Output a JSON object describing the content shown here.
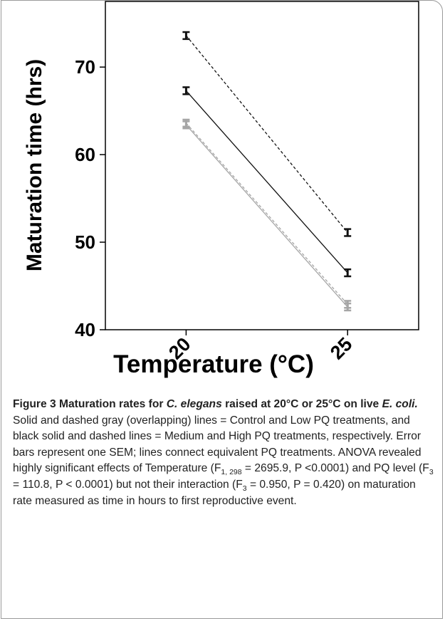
{
  "chart_data": {
    "type": "line",
    "x_label": "Temperature (°C)",
    "y_label": "Maturation time (hrs)",
    "x": [
      20,
      25
    ],
    "xlim": [
      17.5,
      27.2
    ],
    "xticks": [
      20,
      25
    ],
    "ylim": [
      40,
      77.5
    ],
    "yticks": [
      40,
      50,
      60,
      70
    ],
    "series": [
      {
        "color": "#a6a6a6",
        "dashed": false,
        "values": [
          63.4,
          42.6
        ],
        "errors": [
          0.4,
          0.4
        ]
      },
      {
        "color": "#a6a6a6",
        "dashed": true,
        "values": [
          63.6,
          42.9
        ],
        "errors": [
          0.4,
          0.4
        ]
      },
      {
        "color": "#111111",
        "dashed": false,
        "values": [
          67.3,
          46.5
        ],
        "errors": [
          0.4,
          0.4
        ]
      },
      {
        "color": "#111111",
        "dashed": true,
        "values": [
          73.6,
          51.1
        ],
        "errors": [
          0.4,
          0.4
        ]
      }
    ]
  },
  "caption": {
    "runs": [
      {
        "style": "b",
        "text": "Figure 3 Maturation rates for "
      },
      {
        "style": "bi",
        "text": "C. elegans"
      },
      {
        "style": "b",
        "text": " raised at 20°C or 25°C on live "
      },
      {
        "style": "bi",
        "text": "E. coli."
      },
      {
        "style": "n",
        "text": " Solid and dashed gray (overlapping) lines = Control and Low PQ treatments, and black solid and dashed lines = Medium and High PQ treatments, respectively. Error bars represent one SEM; lines connect equivalent PQ treatments. ANOVA revealed highly significant effects of Temperature (F"
      },
      {
        "style": "sub",
        "text": "1, 298"
      },
      {
        "style": "n",
        "text": " = 2695.9, P <0.0001) and PQ level (F"
      },
      {
        "style": "sub",
        "text": "3"
      },
      {
        "style": "n",
        "text": " = 110.8, P < 0.0001) but not their interaction (F"
      },
      {
        "style": "sub",
        "text": "3"
      },
      {
        "style": "n",
        "text": " = 0.950, P = 0.420) on maturation rate measured as time in hours to first reproductive event."
      }
    ]
  }
}
